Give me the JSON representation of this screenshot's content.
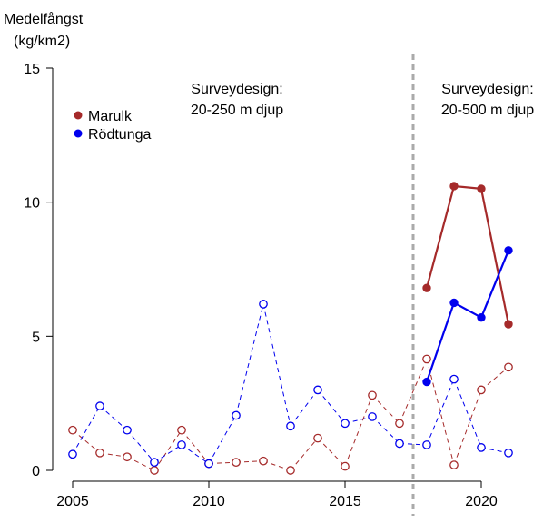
{
  "chart_data": {
    "type": "line",
    "ylabel_lines": [
      "Medelfångst",
      "(kg/km2)"
    ],
    "x_ticks": [
      2005,
      2010,
      2015,
      2020
    ],
    "y_ticks": [
      0,
      5,
      10,
      15
    ],
    "xlim": [
      2004.6,
      2022.0
    ],
    "ylim": [
      0,
      15
    ],
    "grid": false,
    "legend_position": "top-left",
    "design_change_x": 2017.5,
    "annotations": [
      {
        "lines": [
          "Surveydesign:",
          "20-250 m djup"
        ]
      },
      {
        "lines": [
          "Surveydesign:",
          "20-500 m djup"
        ]
      }
    ],
    "colors": {
      "marulk": "#a52a2a",
      "rodtunga": "#0000ee",
      "divider": "#aaaaaa"
    },
    "series": [
      {
        "name": "Marulk",
        "color_key": "marulk",
        "x": [
          2005,
          2006,
          2007,
          2008,
          2009,
          2010,
          2011,
          2012,
          2013,
          2014,
          2015,
          2016,
          2017,
          2018,
          2019,
          2020,
          2021
        ],
        "values": [
          1.5,
          0.65,
          0.5,
          0.0,
          1.5,
          0.25,
          0.3,
          0.35,
          0.0,
          1.2,
          0.15,
          2.8,
          1.75,
          4.15,
          0.2,
          3.0,
          3.85
        ],
        "style": "dashed-open"
      },
      {
        "name": "Rödtunga",
        "color_key": "rodtunga",
        "x": [
          2005,
          2006,
          2007,
          2008,
          2009,
          2010,
          2011,
          2012,
          2013,
          2014,
          2015,
          2016,
          2017,
          2018,
          2019,
          2020,
          2021
        ],
        "values": [
          0.6,
          2.4,
          1.5,
          0.3,
          0.95,
          0.25,
          2.05,
          6.2,
          1.65,
          3.0,
          1.75,
          2.0,
          1.0,
          0.95,
          3.4,
          0.85,
          0.65
        ],
        "style": "dashed-open"
      },
      {
        "name": "Marulk",
        "color_key": "marulk",
        "x": [
          2018,
          2019,
          2020,
          2021
        ],
        "values": [
          6.8,
          10.6,
          10.5,
          5.45
        ],
        "style": "solid-filled"
      },
      {
        "name": "Rödtunga",
        "color_key": "rodtunga",
        "x": [
          2018,
          2019,
          2020,
          2021
        ],
        "values": [
          3.3,
          6.25,
          5.7,
          8.2
        ],
        "style": "solid-filled"
      }
    ],
    "legend": [
      {
        "label": "Marulk",
        "color_key": "marulk"
      },
      {
        "label": "Rödtunga",
        "color_key": "rodtunga"
      }
    ]
  }
}
